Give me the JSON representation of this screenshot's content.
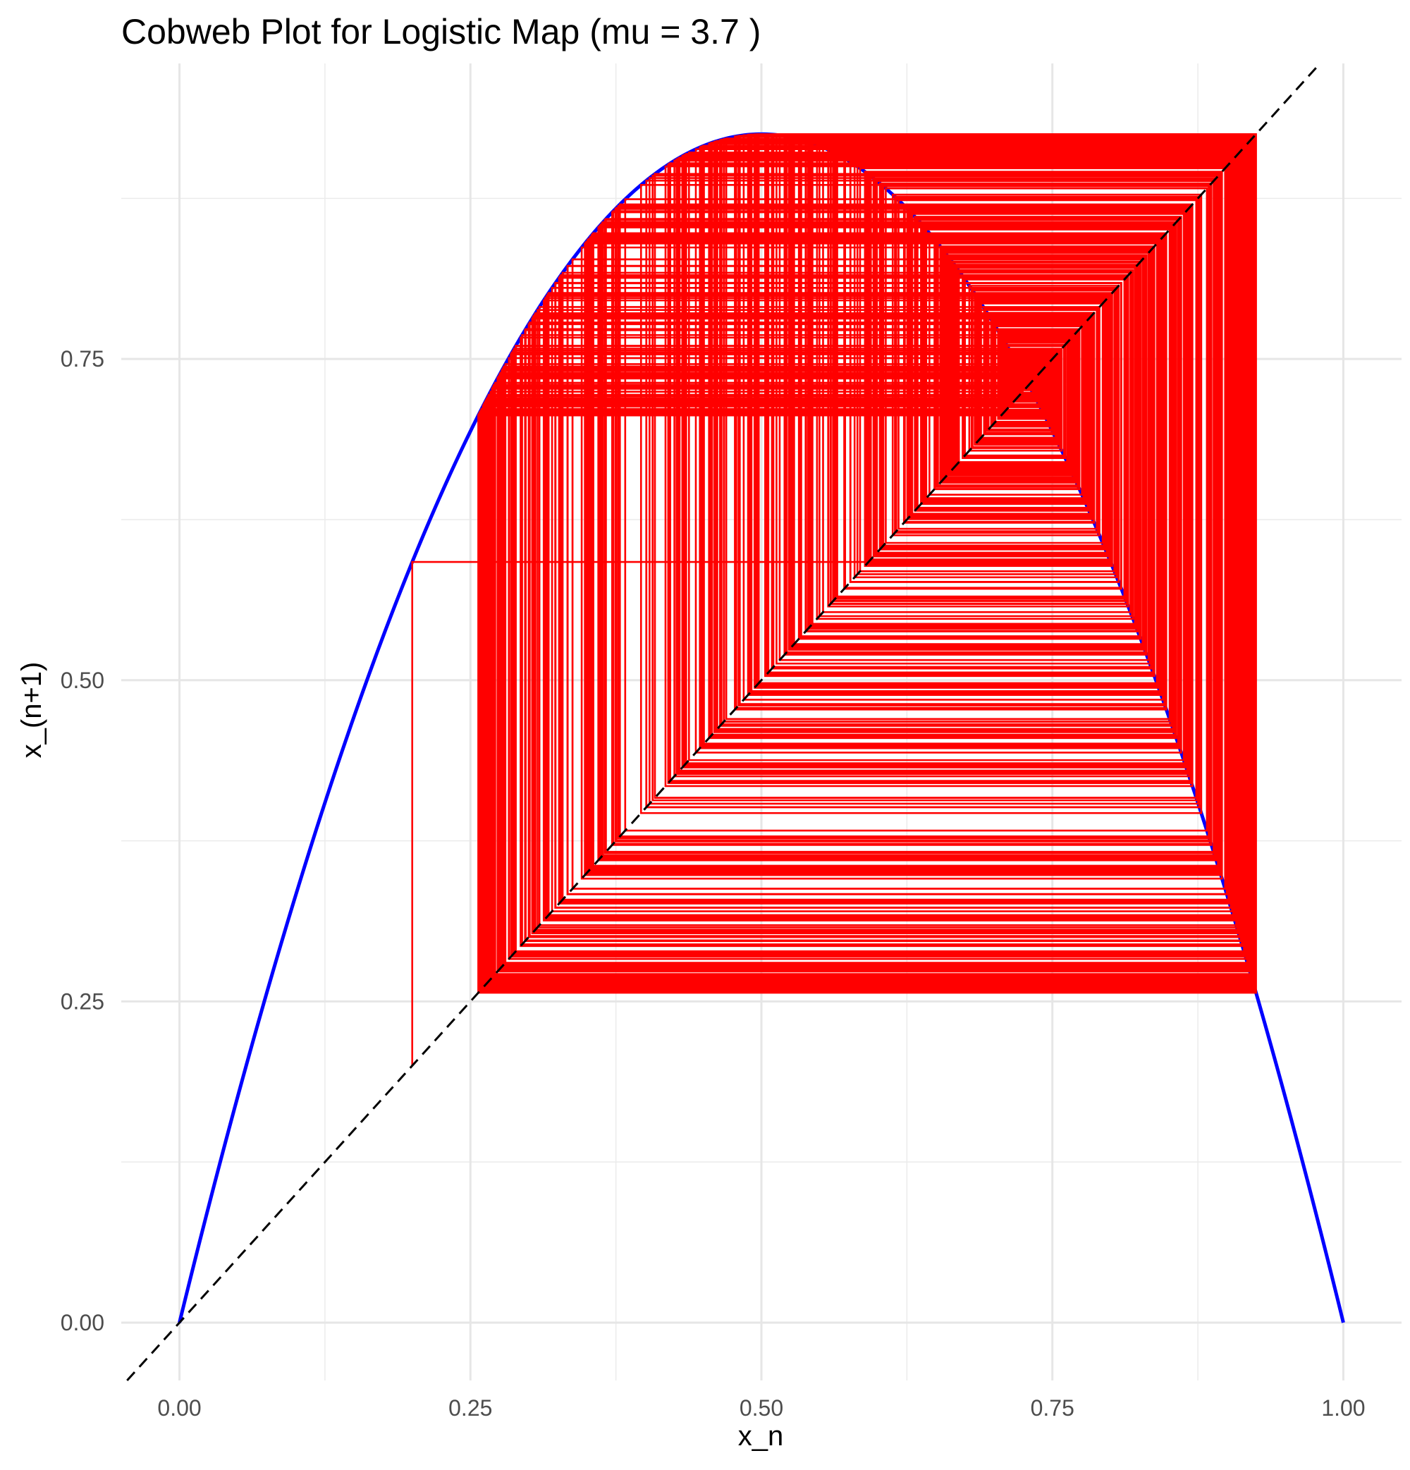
{
  "chart_data": {
    "type": "line",
    "title": "Cobweb Plot for Logistic Map (mu = 3.7 )",
    "xlabel": "x_n",
    "ylabel": "x_(n+1)",
    "mu": 3.7,
    "x0": 0.2,
    "xlim": [
      -0.05,
      1.05
    ],
    "ylim": [
      -0.045,
      0.98
    ],
    "x_ticks": [
      0.0,
      0.25,
      0.5,
      0.75,
      1.0
    ],
    "x_tick_labels": [
      "0.00",
      "0.25",
      "0.50",
      "0.75",
      "1.00"
    ],
    "y_ticks": [
      0.0,
      0.25,
      0.5,
      0.75
    ],
    "y_tick_labels": [
      "0.00",
      "0.25",
      "0.50",
      "0.75"
    ],
    "grid": true,
    "series": [
      {
        "role": "logistic-curve",
        "color": "#0000ff",
        "style": "solid",
        "formula": "y = 3.7 * x * (1 - x)"
      },
      {
        "role": "identity-line",
        "color": "#000000",
        "style": "dashed",
        "formula": "y = x"
      },
      {
        "role": "cobweb",
        "color": "#ff0000",
        "style": "solid",
        "iterations": 1000
      }
    ]
  }
}
